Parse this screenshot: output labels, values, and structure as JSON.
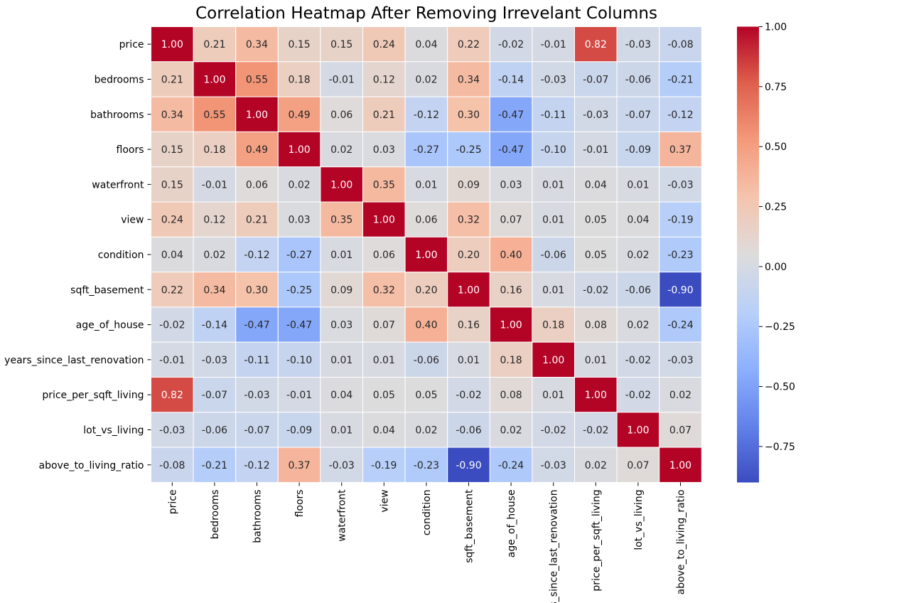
{
  "chart_data": {
    "type": "heatmap",
    "title": "Correlation Heatmap After Removing Irrevelant Columns",
    "labels": [
      "price",
      "bedrooms",
      "bathrooms",
      "floors",
      "waterfront",
      "view",
      "condition",
      "sqft_basement",
      "age_of_house",
      "years_since_last_renovation",
      "price_per_sqft_living",
      "lot_vs_living",
      "above_to_living_ratio"
    ],
    "values": [
      [
        1.0,
        0.21,
        0.34,
        0.15,
        0.15,
        0.24,
        0.04,
        0.22,
        -0.02,
        -0.01,
        0.82,
        -0.03,
        -0.08
      ],
      [
        0.21,
        1.0,
        0.55,
        0.18,
        -0.01,
        0.12,
        0.02,
        0.34,
        -0.14,
        -0.03,
        -0.07,
        -0.06,
        -0.21
      ],
      [
        0.34,
        0.55,
        1.0,
        0.49,
        0.06,
        0.21,
        -0.12,
        0.3,
        -0.47,
        -0.11,
        -0.03,
        -0.07,
        -0.12
      ],
      [
        0.15,
        0.18,
        0.49,
        1.0,
        0.02,
        0.03,
        -0.27,
        -0.25,
        -0.47,
        -0.1,
        -0.01,
        -0.09,
        0.37
      ],
      [
        0.15,
        -0.01,
        0.06,
        0.02,
        1.0,
        0.35,
        0.01,
        0.09,
        0.03,
        0.01,
        0.04,
        0.01,
        -0.03
      ],
      [
        0.24,
        0.12,
        0.21,
        0.03,
        0.35,
        1.0,
        0.06,
        0.32,
        0.07,
        0.01,
        0.05,
        0.04,
        -0.19
      ],
      [
        0.04,
        0.02,
        -0.12,
        -0.27,
        0.01,
        0.06,
        1.0,
        0.2,
        0.4,
        -0.06,
        0.05,
        0.02,
        -0.23
      ],
      [
        0.22,
        0.34,
        0.3,
        -0.25,
        0.09,
        0.32,
        0.2,
        1.0,
        0.16,
        0.01,
        -0.02,
        -0.06,
        -0.9
      ],
      [
        -0.02,
        -0.14,
        -0.47,
        -0.47,
        0.03,
        0.07,
        0.4,
        0.16,
        1.0,
        0.18,
        0.08,
        0.02,
        -0.24
      ],
      [
        -0.01,
        -0.03,
        -0.11,
        -0.1,
        0.01,
        0.01,
        -0.06,
        0.01,
        0.18,
        1.0,
        0.01,
        -0.02,
        -0.03
      ],
      [
        0.82,
        -0.07,
        -0.03,
        -0.01,
        0.04,
        0.05,
        0.05,
        -0.02,
        0.08,
        0.01,
        1.0,
        -0.02,
        0.02
      ],
      [
        -0.03,
        -0.06,
        -0.07,
        -0.09,
        0.01,
        0.04,
        0.02,
        -0.06,
        0.02,
        -0.02,
        -0.02,
        1.0,
        0.07
      ],
      [
        -0.08,
        -0.21,
        -0.12,
        0.37,
        -0.03,
        -0.19,
        -0.23,
        -0.9,
        -0.24,
        -0.03,
        0.02,
        0.07,
        1.0
      ]
    ],
    "colormap": "coolwarm",
    "vmin": -0.9,
    "vmax": 1.0,
    "annotation_format": "0.00",
    "colorbar_ticks": [
      "1.00",
      "0.75",
      "0.50",
      "0.25",
      "0.00",
      "−0.25",
      "−0.50",
      "−0.75"
    ],
    "colorbar_tick_values": [
      1.0,
      0.75,
      0.5,
      0.25,
      0.0,
      -0.25,
      -0.5,
      -0.75
    ],
    "grid": false,
    "cell_border_color": "#ffffff",
    "colorbar_placement": "right"
  }
}
